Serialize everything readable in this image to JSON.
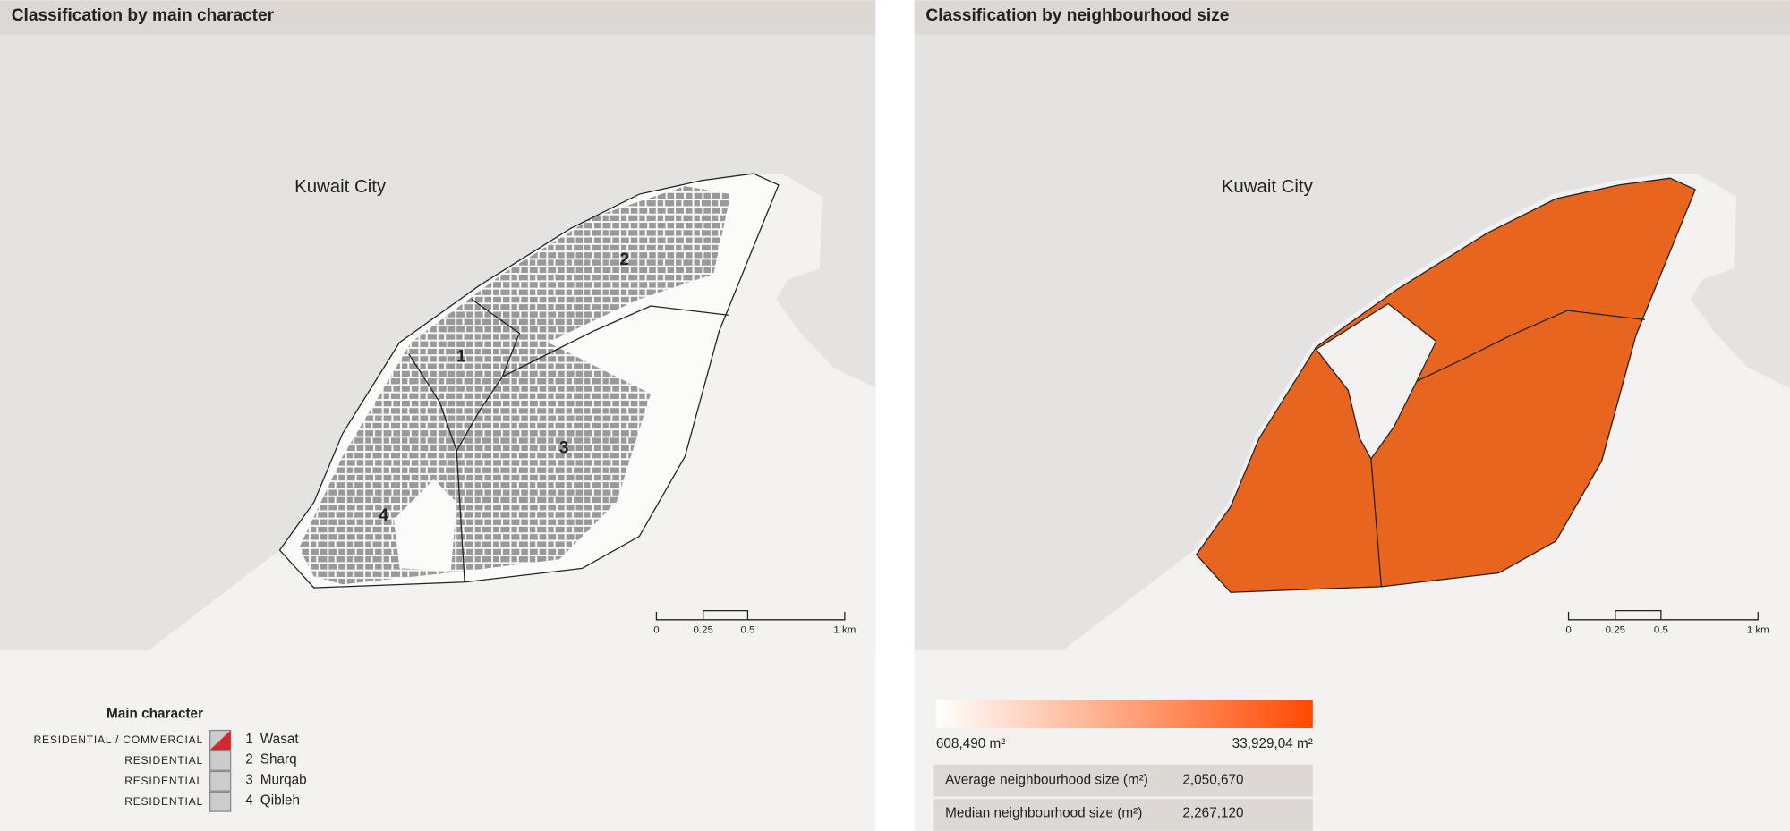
{
  "panels": [
    {
      "title": "Classification by main character",
      "city_label": "Kuwait City",
      "neighbourhood_labels": [
        "1",
        "2",
        "3",
        "4"
      ],
      "scale_labels": [
        "0",
        "0.25",
        "0.5",
        "1 km"
      ],
      "legend": {
        "title": "Main character",
        "rows": [
          {
            "character": "RESIDENTIAL / COMMERCIAL",
            "number": "1",
            "name": "Wasat"
          },
          {
            "character": "RESIDENTIAL",
            "number": "2",
            "name": "Sharq"
          },
          {
            "character": "RESIDENTIAL",
            "number": "3",
            "name": "Murqab"
          },
          {
            "character": "RESIDENTIAL",
            "number": "4",
            "name": "Qibleh"
          }
        ]
      }
    },
    {
      "title": "Classification by neighbourhood size",
      "city_label": "Kuwait City",
      "scale_labels": [
        "0",
        "0.25",
        "0.5",
        "1 km"
      ],
      "legend": {
        "min_label": "608,490 m²",
        "max_label": "33,929,04 m²",
        "stats": [
          [
            "Average neighbourhood size (m²)",
            "2,050,670"
          ],
          [
            "Median neighbourhood size (m²)",
            "2,267,120"
          ]
        ]
      }
    }
  ]
}
